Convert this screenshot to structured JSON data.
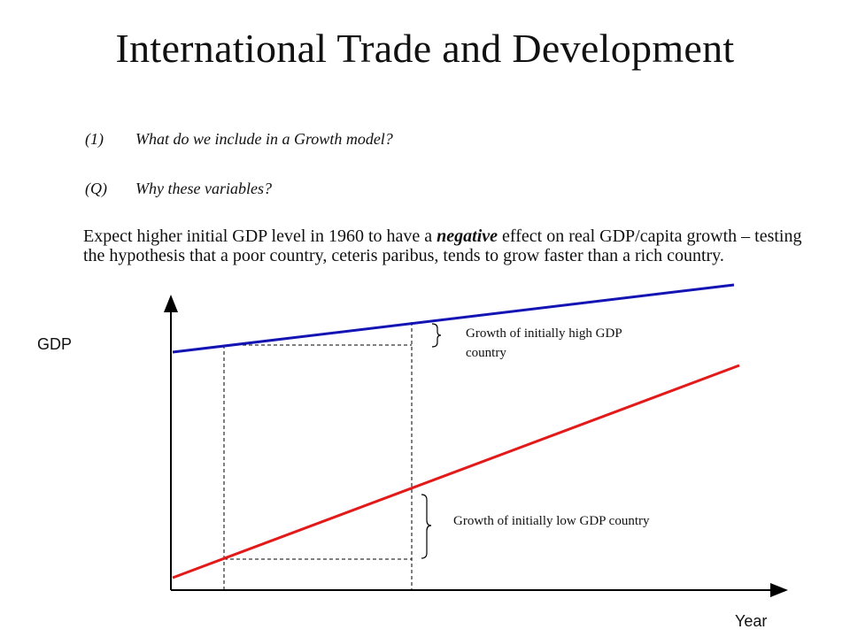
{
  "slide": {
    "title": "International Trade and Development"
  },
  "questions": [
    {
      "num": "(1)",
      "text": "What do we include in a Growth model?"
    },
    {
      "num": "(Q)",
      "text": "Why these variables?"
    }
  ],
  "paragraph": {
    "before": "Expect higher initial GDP level in 1960 to have a ",
    "emphasis": "negative",
    "after": " effect on real GDP/capita growth – testing the hypothesis that a poor country, ceteris paribus, tends to grow faster than a rich country."
  },
  "diagram": {
    "y_label": "GDP",
    "x_label": "Year",
    "high_label_line1": "Growth of initially high GDP",
    "high_label_line2": "country",
    "low_label": "Growth of initially low GDP country",
    "colors": {
      "high_line": "#1414b4",
      "low_line": "#e31a1a",
      "axis": "#000000"
    }
  }
}
